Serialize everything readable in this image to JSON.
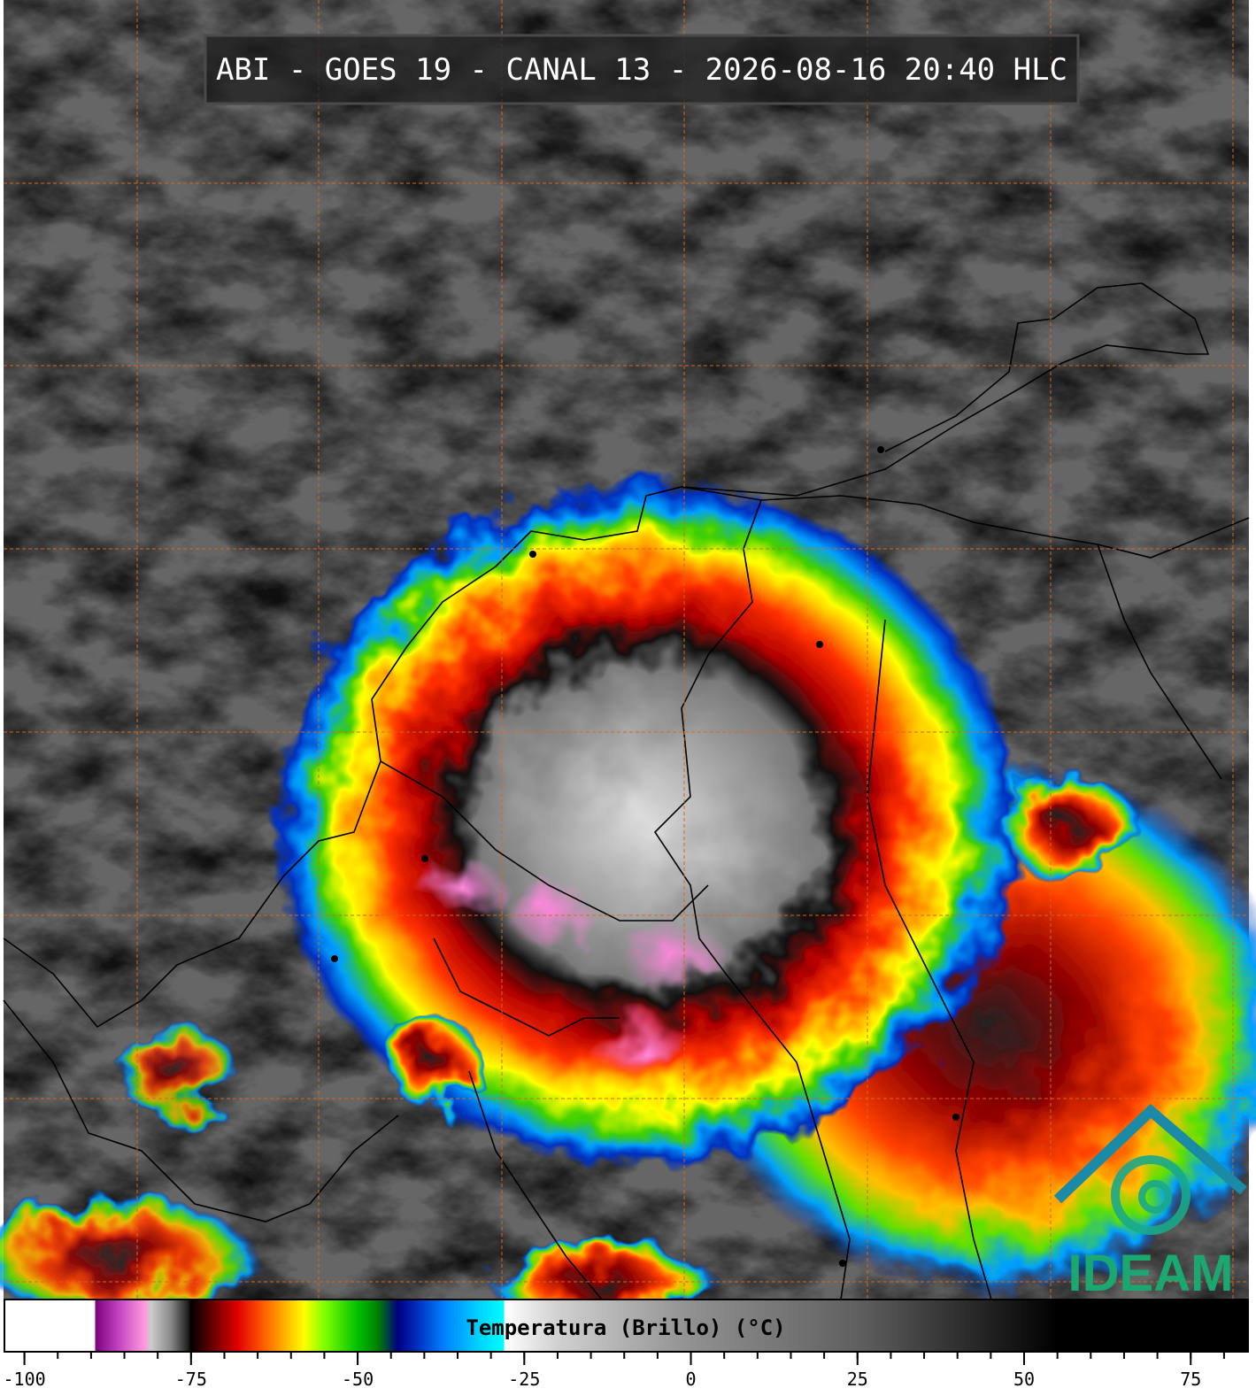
{
  "header": {
    "title": "ABI - GOES 19 - CANAL 13 - 2026-08-16 20:40 HLC"
  },
  "colorbar": {
    "label": "Temperatura (Brillo) (°C)",
    "xlim": [
      -103,
      83.6
    ],
    "ticks": [
      -100,
      -75,
      -50,
      -25,
      0,
      25,
      50,
      75
    ],
    "minor_ticks": [
      -100,
      -95,
      -90,
      -85,
      -80,
      -75,
      -70,
      -65,
      -60,
      -55,
      -50,
      -45,
      -40,
      -35,
      -30,
      -25,
      -20,
      -15,
      -10,
      -5,
      0,
      5,
      10,
      15,
      20,
      25,
      30,
      35,
      40,
      45,
      50,
      55,
      60,
      65,
      70,
      75,
      80
    ],
    "stops": [
      {
        "value": -103,
        "color": "#ffffff"
      },
      {
        "value": -89.4,
        "color": "#ffffff"
      },
      {
        "value": -89.4,
        "color": "#7a007a"
      },
      {
        "value": -86,
        "color": "#c040c0"
      },
      {
        "value": -82,
        "color": "#ff99dd"
      },
      {
        "value": -81,
        "color": "#cccccc"
      },
      {
        "value": -78,
        "color": "#888888"
      },
      {
        "value": -75.5,
        "color": "#222222"
      },
      {
        "value": -75,
        "color": "#000000"
      },
      {
        "value": -72,
        "color": "#600000"
      },
      {
        "value": -68,
        "color": "#e00000"
      },
      {
        "value": -64,
        "color": "#ff6000"
      },
      {
        "value": -61,
        "color": "#ffb000"
      },
      {
        "value": -58,
        "color": "#ffff00"
      },
      {
        "value": -55,
        "color": "#80ff00"
      },
      {
        "value": -50,
        "color": "#00c000"
      },
      {
        "value": -47,
        "color": "#008000"
      },
      {
        "value": -44,
        "color": "#000080"
      },
      {
        "value": -41,
        "color": "#0030c0"
      },
      {
        "value": -37,
        "color": "#0080ff"
      },
      {
        "value": -32,
        "color": "#00d0ff"
      },
      {
        "value": -28,
        "color": "#00ffff"
      },
      {
        "value": -28,
        "color": "#ffffff"
      },
      {
        "value": -20,
        "color": "#d0d0d0"
      },
      {
        "value": 0,
        "color": "#909090"
      },
      {
        "value": 25,
        "color": "#606060"
      },
      {
        "value": 45,
        "color": "#202020"
      },
      {
        "value": 55,
        "color": "#000000"
      },
      {
        "value": 83.6,
        "color": "#000000"
      }
    ]
  },
  "logo": {
    "text": "IDEAM"
  }
}
